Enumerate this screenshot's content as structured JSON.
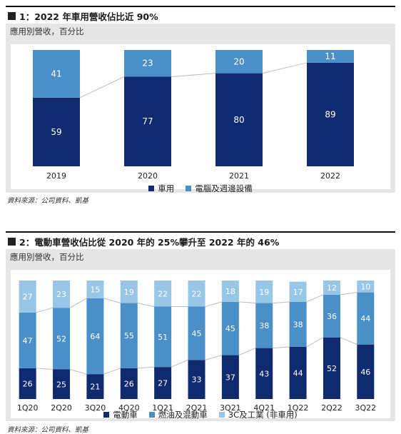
{
  "figure1": {
    "marker_label": "圖",
    "title": "1：2022 年車用營收佔比近 90%",
    "unit": "應用別營收，百分比",
    "source": "資料來源：公司資料、凱基",
    "colors": {
      "auto": "#0f2a6e",
      "pc": "#4b8fc9",
      "connector": "#bdbdbd"
    },
    "legend": [
      {
        "label": "車用",
        "color": "#0f2a6e"
      },
      {
        "label": "電腦及週邊設備",
        "color": "#4b8fc9"
      }
    ]
  },
  "figure2": {
    "marker_label": "圖",
    "title": "2：電動車營收佔比從 2020 年的 25%攀升至 2022 年的 46%",
    "unit": "應用別營收，百分比",
    "source": "資料來源：公司資料、凱基",
    "colors": {
      "ev": "#0f2a6e",
      "ice": "#4b8fc9",
      "3c": "#97c6e6",
      "connector": "#bdbdbd"
    },
    "legend": [
      {
        "label": "電動車",
        "color": "#0f2a6e"
      },
      {
        "label": "燃油及混動車",
        "color": "#4b8fc9"
      },
      {
        "label": "3C及工業 (非車用)",
        "color": "#97c6e6"
      }
    ]
  },
  "chart_data": [
    {
      "type": "bar",
      "stacked": true,
      "title": "1：2022 年車用營收佔比近 90%",
      "ylabel": "應用別營收，百分比",
      "categories": [
        "2019",
        "2020",
        "2021",
        "2022"
      ],
      "series": [
        {
          "name": "車用",
          "values": [
            59,
            77,
            80,
            89
          ]
        },
        {
          "name": "電腦及週邊設備",
          "values": [
            41,
            23,
            20,
            11
          ]
        }
      ],
      "ylim": [
        0,
        100
      ],
      "grid": false,
      "legend_position": "bottom"
    },
    {
      "type": "bar",
      "stacked": true,
      "title": "2：電動車營收佔比從 2020 年的 25%攀升至 2022 年的 46%",
      "ylabel": "應用別營收，百分比",
      "categories": [
        "1Q20",
        "2Q20",
        "3Q20",
        "4Q20",
        "1Q21",
        "2Q21",
        "3Q21",
        "4Q21",
        "1Q22",
        "2Q22",
        "3Q22"
      ],
      "series": [
        {
          "name": "電動車",
          "values": [
            26,
            25,
            21,
            26,
            27,
            33,
            37,
            43,
            44,
            52,
            46
          ]
        },
        {
          "name": "燃油及混動車",
          "values": [
            47,
            52,
            64,
            55,
            51,
            45,
            45,
            38,
            38,
            36,
            44
          ]
        },
        {
          "name": "3C及工業 (非車用)",
          "values": [
            27,
            23,
            15,
            19,
            22,
            22,
            18,
            19,
            17,
            12,
            10
          ]
        }
      ],
      "ylim": [
        0,
        100
      ],
      "grid": false,
      "legend_position": "bottom"
    }
  ]
}
